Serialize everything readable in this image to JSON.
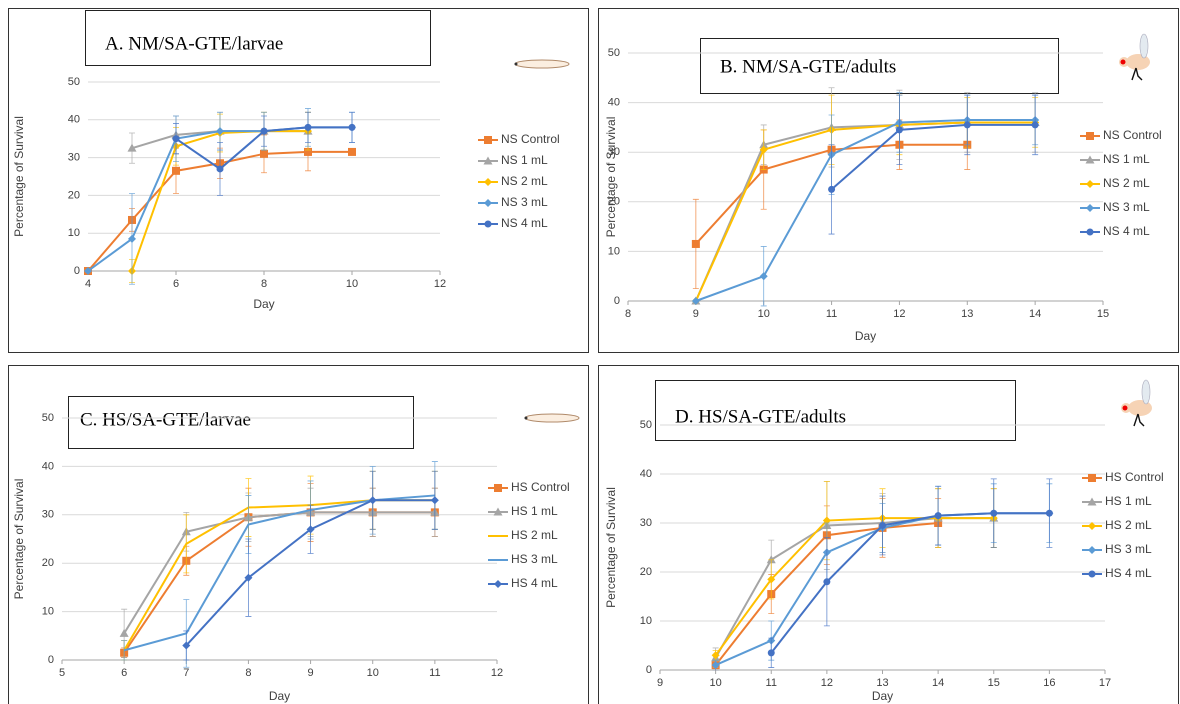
{
  "chart_data": [
    {
      "type": "line",
      "title": "A. NM/SA-GTE/larvae",
      "x_label": "Day",
      "y_label": "Percentage of Survival",
      "x": [
        4,
        5,
        6,
        7,
        8,
        9,
        10
      ],
      "xlim": [
        4,
        12
      ],
      "xticks": [
        4,
        6,
        8,
        10,
        12
      ],
      "ylim": [
        0,
        50
      ],
      "yticks": [
        0,
        10,
        20,
        30,
        40,
        50
      ],
      "grid": true,
      "series": [
        {
          "name": "NS Control",
          "color": "#ed7d31",
          "marker": "square",
          "values": [
            0,
            13.5,
            26.5,
            28.5,
            31,
            31.5,
            31.5
          ],
          "errors": [
            null,
            3,
            6,
            4,
            5,
            5,
            null
          ]
        },
        {
          "name": "NS 1 mL",
          "color": "#a5a5a5",
          "marker": "triangle",
          "values": [
            null,
            32.5,
            36,
            37,
            37,
            37,
            null
          ],
          "errors": [
            null,
            4,
            5,
            5,
            5,
            5,
            null
          ]
        },
        {
          "name": "NS 2 mL",
          "color": "#ffc000",
          "marker": "diamond",
          "values": [
            null,
            0,
            33,
            36.5,
            37,
            37,
            null
          ],
          "errors": [
            null,
            3,
            5,
            5,
            5,
            5,
            null
          ]
        },
        {
          "name": "NS 3 mL",
          "color": "#5b9bd5",
          "marker": "diamond",
          "values": [
            0,
            8.5,
            35,
            37,
            37,
            38,
            38
          ],
          "errors": [
            null,
            12,
            6,
            5,
            5,
            5,
            4
          ]
        },
        {
          "name": "NS 4 mL",
          "color": "#4472c4",
          "marker": "circle",
          "values": [
            null,
            null,
            35,
            27,
            37,
            38,
            38
          ],
          "errors": [
            null,
            null,
            4,
            7,
            4,
            4,
            4
          ]
        }
      ]
    },
    {
      "type": "line",
      "title": "B. NM/SA-GTE/adults",
      "x_label": "Day",
      "y_label": "Percentage of Survival",
      "x": [
        9,
        10,
        11,
        12,
        13,
        14
      ],
      "xlim": [
        8,
        15
      ],
      "xticks": [
        8,
        9,
        10,
        11,
        12,
        13,
        14,
        15
      ],
      "ylim": [
        0,
        50
      ],
      "yticks": [
        0,
        10,
        20,
        30,
        40,
        50
      ],
      "grid": true,
      "series": [
        {
          "name": "NS Control",
          "color": "#ed7d31",
          "marker": "square",
          "values": [
            11.5,
            26.5,
            30.5,
            31.5,
            31.5,
            null
          ],
          "errors": [
            9,
            8,
            null,
            5,
            5,
            null
          ]
        },
        {
          "name": "NS 1 mL",
          "color": "#a5a5a5",
          "marker": "triangle",
          "values": [
            0,
            31.5,
            35,
            35.5,
            36,
            36
          ],
          "errors": [
            null,
            4,
            8,
            7,
            6,
            6
          ]
        },
        {
          "name": "NS 2 mL",
          "color": "#ffc000",
          "marker": "diamond",
          "values": [
            0,
            30.5,
            34.5,
            35.5,
            36,
            36
          ],
          "errors": [
            null,
            4,
            7,
            6,
            5,
            5
          ]
        },
        {
          "name": "NS 3 mL",
          "color": "#5b9bd5",
          "marker": "diamond",
          "values": [
            0,
            5,
            29.5,
            36,
            36.5,
            36.5
          ],
          "errors": [
            null,
            6,
            8,
            6,
            5,
            5
          ]
        },
        {
          "name": "NS 4 mL",
          "color": "#4472c4",
          "marker": "circle",
          "values": [
            null,
            null,
            22.5,
            34.5,
            35.5,
            35.5
          ],
          "errors": [
            null,
            null,
            9,
            7,
            6,
            6
          ]
        }
      ]
    },
    {
      "type": "line",
      "title": "C. HS/SA-GTE/larvae",
      "x_label": "Day",
      "y_label": "Percentage of Survival",
      "x": [
        6,
        7,
        8,
        9,
        10,
        11
      ],
      "xlim": [
        5,
        12
      ],
      "xticks": [
        5,
        6,
        7,
        8,
        9,
        10,
        11,
        12
      ],
      "ylim": [
        0,
        50
      ],
      "yticks": [
        0,
        10,
        20,
        30,
        40,
        50
      ],
      "grid": true,
      "series": [
        {
          "name": "HS Control",
          "color": "#ed7d31",
          "marker": "square",
          "values": [
            1.5,
            20.5,
            29.5,
            30.5,
            30.5,
            30.5
          ],
          "errors": [
            1,
            3,
            6,
            6,
            5,
            5
          ]
        },
        {
          "name": "HS 1 mL",
          "color": "#a5a5a5",
          "marker": "triangle",
          "values": [
            5.5,
            26.5,
            29.5,
            30.5,
            30.5,
            30.5
          ],
          "errors": [
            5,
            4,
            5,
            5,
            5,
            5
          ]
        },
        {
          "name": "HS 2 mL",
          "color": "#ffc000",
          "marker": "none",
          "values": [
            2,
            24,
            31.5,
            32,
            33,
            33
          ],
          "errors": [
            2,
            6,
            6,
            6,
            6,
            6
          ]
        },
        {
          "name": "HS 3 mL",
          "color": "#5b9bd5",
          "marker": "none",
          "values": [
            2,
            5.5,
            28,
            31,
            33,
            34
          ],
          "errors": [
            2,
            7,
            6,
            6,
            7,
            7
          ]
        },
        {
          "name": "HS 4 mL",
          "color": "#4472c4",
          "marker": "diamond",
          "values": [
            null,
            3,
            17,
            27,
            33,
            33
          ],
          "errors": [
            null,
            3,
            8,
            5,
            6,
            6
          ]
        }
      ]
    },
    {
      "type": "line",
      "title": "D. HS/SA-GTE/adults",
      "x_label": "Day",
      "y_label": "Percentage of Survival",
      "x": [
        10,
        11,
        12,
        13,
        14,
        15,
        16
      ],
      "xlim": [
        9,
        17
      ],
      "xticks": [
        9,
        10,
        11,
        12,
        13,
        14,
        15,
        16,
        17
      ],
      "ylim": [
        0,
        50
      ],
      "yticks": [
        0,
        10,
        20,
        30,
        40,
        50
      ],
      "grid": true,
      "series": [
        {
          "name": "HS Control",
          "color": "#ed7d31",
          "marker": "square",
          "values": [
            1,
            15.5,
            27.5,
            29,
            30,
            null,
            null
          ],
          "errors": [
            1,
            4,
            6,
            6,
            5,
            null,
            null
          ]
        },
        {
          "name": "HS 1 mL",
          "color": "#a5a5a5",
          "marker": "triangle",
          "values": [
            2.5,
            22.5,
            29.5,
            30,
            31,
            31,
            null
          ],
          "errors": [
            2,
            4,
            9,
            6,
            6,
            6,
            null
          ]
        },
        {
          "name": "HS 2 mL",
          "color": "#ffc000",
          "marker": "diamond",
          "values": [
            3,
            18.5,
            30.5,
            31,
            31,
            31,
            null
          ],
          "errors": [
            1,
            4,
            8,
            6,
            6,
            6,
            null
          ]
        },
        {
          "name": "HS 3 mL",
          "color": "#5b9bd5",
          "marker": "diamond",
          "values": [
            1,
            6,
            24,
            29,
            31.5,
            32,
            32
          ],
          "errors": [
            1,
            4,
            6,
            5,
            6,
            6,
            6
          ]
        },
        {
          "name": "HS 4 mL",
          "color": "#4472c4",
          "marker": "circle",
          "values": [
            null,
            3.5,
            18,
            29.5,
            31.5,
            32,
            32
          ],
          "errors": [
            null,
            3,
            9,
            6,
            6,
            7,
            7
          ]
        }
      ]
    }
  ]
}
